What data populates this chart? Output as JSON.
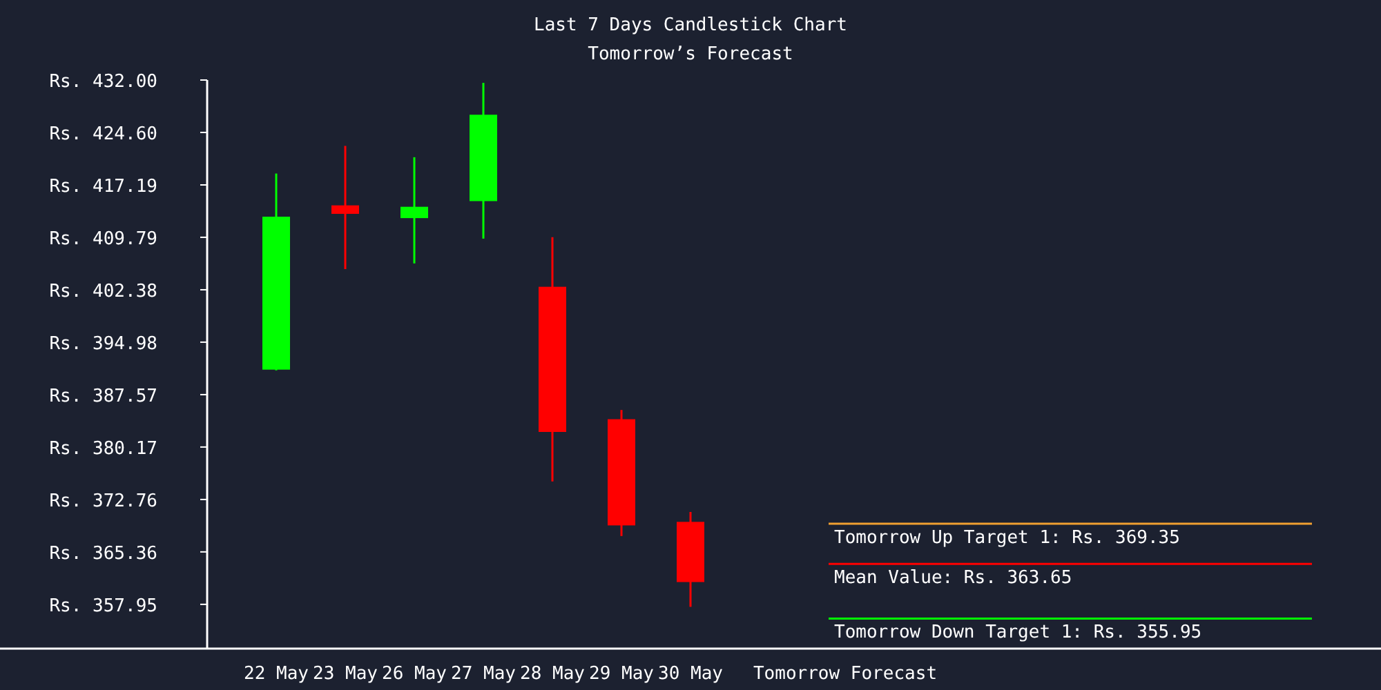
{
  "chart_data": {
    "type": "candlestick",
    "title": "Last 7 Days Candlestick Chart",
    "subtitle": "Tomorrow’s Forecast",
    "categories": [
      "22 May",
      "23 May",
      "26 May",
      "27 May",
      "28 May",
      "29 May",
      "30 May"
    ],
    "ohlc": [
      [
        391.1,
        418.8,
        391.0,
        412.7
      ],
      [
        414.3,
        422.7,
        405.3,
        413.1
      ],
      [
        412.5,
        421.1,
        406.1,
        414.1
      ],
      [
        414.9,
        431.6,
        409.6,
        427.1
      ],
      [
        402.8,
        409.8,
        375.3,
        382.3
      ],
      [
        384.1,
        385.4,
        367.6,
        369.1
      ],
      [
        369.6,
        371.0,
        357.6,
        361.1
      ]
    ],
    "colors": [
      "#00ff00",
      "#ff0000",
      "#00ff00",
      "#00ff00",
      "#ff0000",
      "#ff0000",
      "#ff0000"
    ],
    "ylim": [
      351.7,
      432
    ],
    "yticks": [
      {
        "value": 432,
        "label": "Rs. 432.00"
      },
      {
        "value": 424.6,
        "label": "Rs. 424.60"
      },
      {
        "value": 417.19,
        "label": "Rs. 417.19"
      },
      {
        "value": 409.79,
        "label": "Rs. 409.79"
      },
      {
        "value": 402.38,
        "label": "Rs. 402.38"
      },
      {
        "value": 394.98,
        "label": "Rs. 394.98"
      },
      {
        "value": 387.57,
        "label": "Rs. 387.57"
      },
      {
        "value": 380.17,
        "label": "Rs. 380.17"
      },
      {
        "value": 372.76,
        "label": "Rs. 372.76"
      },
      {
        "value": 365.36,
        "label": "Rs. 365.36"
      },
      {
        "value": 357.95,
        "label": "Rs. 357.95"
      }
    ],
    "ref_lines": [
      {
        "axis": "y",
        "value": 369.35,
        "label": "Tomorrow Up Target 1: Rs. 369.35",
        "color": "#f0a030"
      },
      {
        "axis": "y",
        "value": 363.65,
        "label": "Mean Value: Rs. 363.65",
        "color": "#ff0000"
      },
      {
        "axis": "y",
        "value": 355.95,
        "label": "Tomorrow Down Target 1: Rs. 355.95",
        "color": "#00ff00"
      }
    ],
    "annotations": [
      "Tomorrow Forecast"
    ],
    "grid": false
  }
}
